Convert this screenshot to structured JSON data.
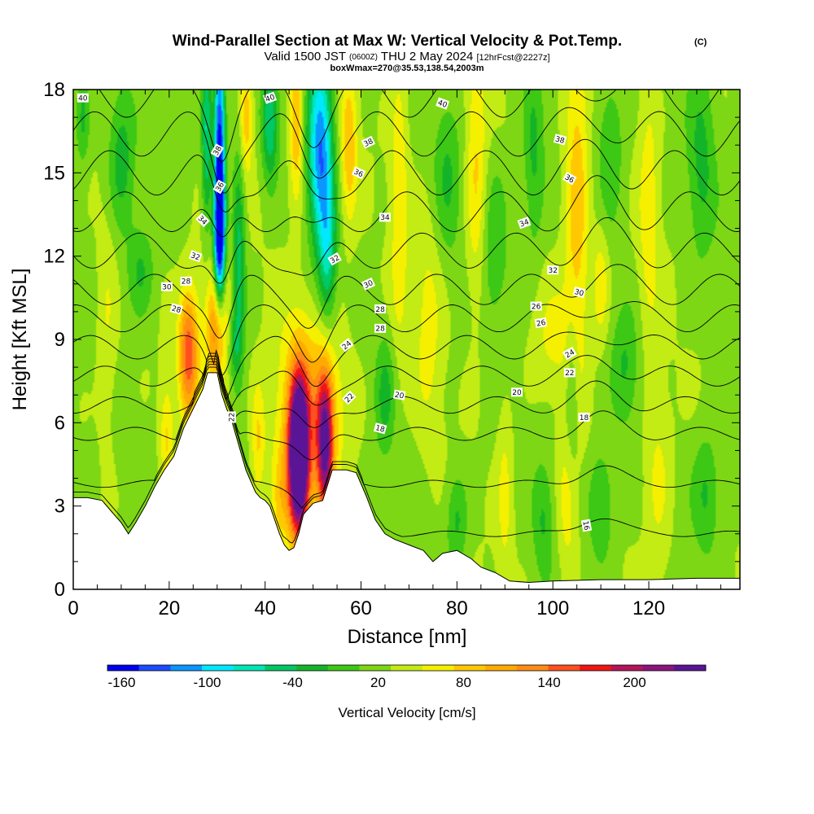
{
  "header": {
    "title": "Wind-Parallel Section at Max W: Vertical Velocity & Pot.Temp.",
    "copyright": "(C)",
    "valid_prefix": "Valid 1500 JST",
    "valid_utc": "(0600Z)",
    "valid_date": "THU 2 May 2024",
    "forecast": "[12hrFcst@2227z]",
    "box": "boxWmax=270@35.53,138.54,2003m"
  },
  "chart_data": {
    "type": "heatmap",
    "xlabel": "Distance [nm]",
    "ylabel": "Height [Kft MSL]",
    "xlim": [
      0,
      139
    ],
    "ylim": [
      0,
      18
    ],
    "xticks": [
      0,
      20,
      40,
      60,
      80,
      100,
      120
    ],
    "yticks": [
      0,
      3,
      6,
      9,
      12,
      15,
      18
    ],
    "colorbar": {
      "label": "Vertical Velocity [cm/s]",
      "min": -170,
      "max": 250,
      "step": 20,
      "tick_values": [
        -160,
        -100,
        -40,
        20,
        80,
        140,
        200
      ],
      "tick_labels": [
        "-160",
        "-100",
        "-40",
        "20",
        "80",
        "140",
        "200"
      ],
      "colors": [
        "#0000ee",
        "#1c4cff",
        "#0a96ff",
        "#00e8ff",
        "#00e6b4",
        "#00c864",
        "#14b428",
        "#3cc814",
        "#7dd714",
        "#c3eb14",
        "#f5f000",
        "#ffc800",
        "#ffaa00",
        "#ff8c14",
        "#ff501e",
        "#f01414",
        "#b4145a",
        "#8c147d",
        "#5a1496"
      ]
    },
    "terrain": [
      [
        0,
        3.3
      ],
      [
        3,
        3.3
      ],
      [
        6,
        3.2
      ],
      [
        8,
        2.8
      ],
      [
        10,
        2.4
      ],
      [
        11.5,
        2.0
      ],
      [
        13,
        2.4
      ],
      [
        15,
        3.0
      ],
      [
        17,
        3.7
      ],
      [
        19,
        4.3
      ],
      [
        21,
        4.8
      ],
      [
        23,
        5.8
      ],
      [
        25,
        6.5
      ],
      [
        27,
        7.2
      ],
      [
        28,
        7.8
      ],
      [
        30,
        7.8
      ],
      [
        31,
        7.0
      ],
      [
        32,
        6.5
      ],
      [
        33,
        6.1
      ],
      [
        34,
        5.5
      ],
      [
        35,
        4.9
      ],
      [
        36,
        4.3
      ],
      [
        37,
        3.9
      ],
      [
        38,
        3.5
      ],
      [
        39,
        3.3
      ],
      [
        40,
        3.2
      ],
      [
        41,
        3.0
      ],
      [
        42,
        2.5
      ],
      [
        43,
        2.0
      ],
      [
        44,
        1.6
      ],
      [
        45,
        1.4
      ],
      [
        46,
        1.5
      ],
      [
        47,
        2.0
      ],
      [
        48,
        2.7
      ],
      [
        50,
        3.1
      ],
      [
        52,
        3.2
      ],
      [
        54,
        4.3
      ],
      [
        57,
        4.3
      ],
      [
        59,
        4.2
      ],
      [
        61,
        3.4
      ],
      [
        63,
        2.5
      ],
      [
        65,
        2.0
      ],
      [
        67,
        1.8
      ],
      [
        70,
        1.6
      ],
      [
        73,
        1.4
      ],
      [
        75,
        1.0
      ],
      [
        77,
        1.3
      ],
      [
        80,
        1.4
      ],
      [
        83,
        1.1
      ],
      [
        85,
        0.8
      ],
      [
        88,
        0.6
      ],
      [
        91,
        0.3
      ],
      [
        95,
        0.25
      ],
      [
        100,
        0.3
      ],
      [
        110,
        0.35
      ],
      [
        120,
        0.35
      ],
      [
        130,
        0.4
      ],
      [
        139,
        0.4
      ]
    ],
    "w_features": [
      {
        "x": 47,
        "y": 4.8,
        "sx": 1.4,
        "sy": 1.9,
        "a": 270
      },
      {
        "x": 52.5,
        "y": 5.2,
        "sx": 1.2,
        "sy": 1.8,
        "a": 170
      },
      {
        "x": 49.5,
        "y": 6.8,
        "sx": 5.0,
        "sy": 2.3,
        "a": 60
      },
      {
        "x": 46.5,
        "y": 4.0,
        "sx": 3.0,
        "sy": 2.0,
        "a": 40
      },
      {
        "x": 24,
        "y": 8.5,
        "sx": 1.4,
        "sy": 1.6,
        "a": 115
      },
      {
        "x": 30,
        "y": 9.3,
        "sx": 1.3,
        "sy": 1.4,
        "a": 90
      },
      {
        "x": 30,
        "y": 10.0,
        "sx": 3.0,
        "sy": 3.0,
        "a": 30
      },
      {
        "x": 19.5,
        "y": 5.5,
        "sx": 1.0,
        "sy": 1.4,
        "a": 45
      },
      {
        "x": 38.5,
        "y": 5.3,
        "sx": 1.0,
        "sy": 1.5,
        "a": 45
      },
      {
        "x": 43,
        "y": 3.0,
        "sx": 1.2,
        "sy": 1.2,
        "a": 30
      },
      {
        "x": 30.5,
        "y": 15.0,
        "sx": 0.8,
        "sy": 3.5,
        "a": -190
      },
      {
        "x": 30.5,
        "y": 12.5,
        "sx": 0.9,
        "sy": 1.5,
        "a": -90
      },
      {
        "x": 27.8,
        "y": 16.5,
        "sx": 0.7,
        "sy": 2.5,
        "a": -80
      },
      {
        "x": 51.5,
        "y": 16.0,
        "sx": 1.8,
        "sy": 2.5,
        "a": -130
      },
      {
        "x": 53,
        "y": 12.0,
        "sx": 1.3,
        "sy": 2.0,
        "a": -70
      },
      {
        "x": 41,
        "y": 16.8,
        "sx": 1.2,
        "sy": 1.5,
        "a": -75
      },
      {
        "x": 34.5,
        "y": 12.0,
        "sx": 1.0,
        "sy": 3.0,
        "a": -70
      },
      {
        "x": 10,
        "y": 15.5,
        "sx": 2.0,
        "sy": 1.8,
        "a": -50
      },
      {
        "x": 2,
        "y": 17.0,
        "sx": 1.0,
        "sy": 1.2,
        "a": -40
      },
      {
        "x": 14,
        "y": 11.5,
        "sx": 2.0,
        "sy": 1.2,
        "a": -40
      },
      {
        "x": 33.5,
        "y": 8.8,
        "sx": 1.0,
        "sy": 0.9,
        "a": -40
      },
      {
        "x": 36,
        "y": 17.0,
        "sx": 1.0,
        "sy": 1.5,
        "a": 60
      },
      {
        "x": 46.5,
        "y": 16.8,
        "sx": 1.0,
        "sy": 2.0,
        "a": 70
      },
      {
        "x": 57.5,
        "y": 16.0,
        "sx": 1.2,
        "sy": 2.0,
        "a": 60
      },
      {
        "x": 68,
        "y": 14.0,
        "sx": 1.3,
        "sy": 4.0,
        "a": 40
      },
      {
        "x": 74,
        "y": 9.5,
        "sx": 2.0,
        "sy": 3.0,
        "a": 30
      },
      {
        "x": 84,
        "y": 15.0,
        "sx": 1.5,
        "sy": 3.5,
        "a": 45
      },
      {
        "x": 105,
        "y": 14.0,
        "sx": 1.8,
        "sy": 4.5,
        "a": 60
      },
      {
        "x": 110,
        "y": 11.0,
        "sx": 1.2,
        "sy": 1.5,
        "a": 40
      },
      {
        "x": 120,
        "y": 13.5,
        "sx": 1.5,
        "sy": 3.5,
        "a": 35
      },
      {
        "x": 100,
        "y": 9.0,
        "sx": 3.0,
        "sy": 1.5,
        "a": 25
      },
      {
        "x": 7,
        "y": 9.5,
        "sx": 1.5,
        "sy": 3.0,
        "a": 25
      },
      {
        "x": 104,
        "y": 7.0,
        "sx": 1.0,
        "sy": 2.0,
        "a": -40
      },
      {
        "x": 96,
        "y": 15.5,
        "sx": 1.5,
        "sy": 2.5,
        "a": -40
      },
      {
        "x": 131,
        "y": 15.5,
        "sx": 2.0,
        "sy": 2.5,
        "a": -40
      },
      {
        "x": 88,
        "y": 12.5,
        "sx": 2.0,
        "sy": 2.0,
        "a": -35
      },
      {
        "x": 78,
        "y": 15.0,
        "sx": 2.0,
        "sy": 2.0,
        "a": -35
      },
      {
        "x": 112,
        "y": 16.0,
        "sx": 2.0,
        "sy": 2.0,
        "a": -35
      },
      {
        "x": 80,
        "y": 2.5,
        "sx": 1.5,
        "sy": 1.2,
        "a": -40
      },
      {
        "x": 98,
        "y": 2.5,
        "sx": 1.5,
        "sy": 1.5,
        "a": -35
      },
      {
        "x": 110,
        "y": 3.0,
        "sx": 2.0,
        "sy": 1.5,
        "a": -40
      },
      {
        "x": 132,
        "y": 3.5,
        "sx": 2.0,
        "sy": 1.5,
        "a": -40
      },
      {
        "x": 90,
        "y": 3.5,
        "sx": 1.2,
        "sy": 2.5,
        "a": 30
      },
      {
        "x": 103,
        "y": 3.0,
        "sx": 1.5,
        "sy": 2.0,
        "a": 35
      },
      {
        "x": 122,
        "y": 4.0,
        "sx": 2.0,
        "sy": 2.5,
        "a": 30
      },
      {
        "x": 65,
        "y": 7.0,
        "sx": 1.5,
        "sy": 1.5,
        "a": -40
      },
      {
        "x": 115,
        "y": 8.0,
        "sx": 2.0,
        "sy": 1.5,
        "a": -35
      }
    ],
    "theta_levels": [
      16,
      18,
      20,
      22,
      24,
      26,
      28,
      30,
      32,
      34,
      36,
      38,
      40
    ],
    "theta_labels": [
      {
        "text": "40",
        "x": 2,
        "y": 17.7,
        "rot": 0
      },
      {
        "text": "40",
        "x": 41,
        "y": 17.7,
        "rot": 20
      },
      {
        "text": "40",
        "x": 77,
        "y": 17.5,
        "rot": -20
      },
      {
        "text": "38",
        "x": 30,
        "y": 15.8,
        "rot": 60
      },
      {
        "text": "38",
        "x": 61.5,
        "y": 16.1,
        "rot": 25
      },
      {
        "text": "38",
        "x": 101.5,
        "y": 16.2,
        "rot": -15
      },
      {
        "text": "36",
        "x": 30.5,
        "y": 14.5,
        "rot": 60
      },
      {
        "text": "36",
        "x": 59.5,
        "y": 15.0,
        "rot": -25
      },
      {
        "text": "36",
        "x": 103.5,
        "y": 14.8,
        "rot": -30
      },
      {
        "text": "34",
        "x": 27,
        "y": 13.3,
        "rot": -45
      },
      {
        "text": "34",
        "x": 65,
        "y": 13.4,
        "rot": 0
      },
      {
        "text": "34",
        "x": 94,
        "y": 13.2,
        "rot": 20
      },
      {
        "text": "32",
        "x": 25.5,
        "y": 12.0,
        "rot": -20
      },
      {
        "text": "32",
        "x": 54.5,
        "y": 11.9,
        "rot": 30
      },
      {
        "text": "32",
        "x": 100,
        "y": 11.5,
        "rot": 0
      },
      {
        "text": "30",
        "x": 19.5,
        "y": 10.9,
        "rot": 0
      },
      {
        "text": "30",
        "x": 61.5,
        "y": 11.0,
        "rot": 25
      },
      {
        "text": "30",
        "x": 105.5,
        "y": 10.7,
        "rot": -15
      },
      {
        "text": "28",
        "x": 23.5,
        "y": 11.1,
        "rot": 0
      },
      {
        "text": "28",
        "x": 21.5,
        "y": 10.1,
        "rot": -15
      },
      {
        "text": "28",
        "x": 64,
        "y": 10.1,
        "rot": 0
      },
      {
        "text": "28",
        "x": 64,
        "y": 9.4,
        "rot": 0
      },
      {
        "text": "26",
        "x": 96.5,
        "y": 10.2,
        "rot": 0
      },
      {
        "text": "26",
        "x": 97.5,
        "y": 9.6,
        "rot": 10
      },
      {
        "text": "24",
        "x": 57,
        "y": 8.8,
        "rot": 40
      },
      {
        "text": "24",
        "x": 103.5,
        "y": 8.5,
        "rot": 30
      },
      {
        "text": "22",
        "x": 103.5,
        "y": 7.8,
        "rot": 0
      },
      {
        "text": "22",
        "x": 57.5,
        "y": 6.9,
        "rot": 45
      },
      {
        "text": "22",
        "x": 33,
        "y": 6.2,
        "rot": 90
      },
      {
        "text": "20",
        "x": 68,
        "y": 7.0,
        "rot": -10
      },
      {
        "text": "20",
        "x": 92.5,
        "y": 7.1,
        "rot": 0
      },
      {
        "text": "18",
        "x": 64,
        "y": 5.8,
        "rot": -15
      },
      {
        "text": "18",
        "x": 106.5,
        "y": 6.2,
        "rot": 0
      },
      {
        "text": "16",
        "x": 107,
        "y": 2.3,
        "rot": -80
      }
    ]
  }
}
